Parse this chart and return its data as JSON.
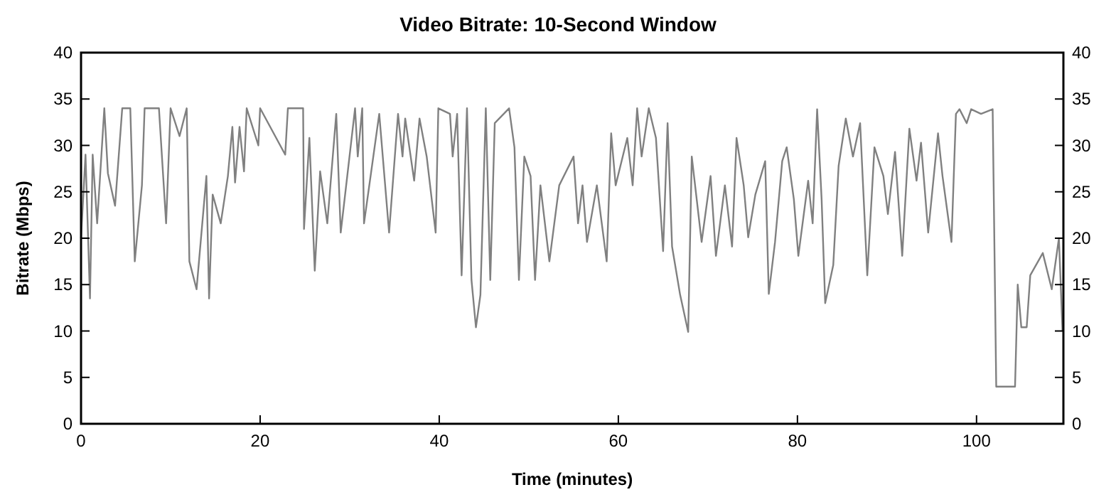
{
  "chart_data": {
    "type": "line",
    "title": "Video Bitrate: 10-Second Window",
    "xlabel": "Time (minutes)",
    "ylabel": "Bitrate (Mbps)",
    "xlim": [
      0,
      109.7
    ],
    "xticks": [
      0,
      20,
      40,
      60,
      80,
      100
    ],
    "ylim": [
      0,
      40
    ],
    "yticks": [
      0,
      5,
      10,
      15,
      20,
      25,
      30,
      35,
      40
    ],
    "y2lim": [
      0,
      40
    ],
    "y2ticks": [
      0,
      5,
      10,
      15,
      20,
      25,
      30,
      35,
      40
    ],
    "grid": false,
    "marker": "none",
    "line_style": "solid",
    "series": [
      {
        "color": "#808080",
        "x": [
          0,
          0.5,
          1,
          1.3,
          1.8,
          2.6,
          3,
          3.8,
          4.6,
          5.5,
          6,
          6.8,
          7.1,
          8.7,
          9.5,
          10,
          11,
          11.8,
          12.1,
          12.9,
          14,
          14.3,
          14.7,
          15.6,
          16.4,
          16.9,
          17.2,
          17.7,
          18.2,
          18.5,
          19.8,
          20,
          22.8,
          23.1,
          24.8,
          24.9,
          25.5,
          26.1,
          26.7,
          27.5,
          28.5,
          29,
          30.6,
          30.9,
          31.4,
          31.6,
          33.3,
          34.4,
          35.4,
          35.9,
          36.2,
          37.2,
          37.8,
          38.6,
          39.6,
          39.9,
          41.2,
          41.5,
          42,
          42.5,
          43.1,
          43.6,
          44.1,
          44.6,
          45.2,
          45.7,
          46.2,
          47.8,
          48.4,
          48.9,
          49.5,
          50.2,
          50.7,
          51.3,
          52.3,
          53.4,
          55,
          55.5,
          56,
          56.5,
          57.6,
          58.7,
          59.2,
          59.7,
          61,
          61.6,
          62.1,
          62.6,
          63.4,
          64.2,
          65,
          65.5,
          66,
          66.9,
          67.8,
          68.2,
          69.3,
          70.3,
          70.9,
          71.9,
          72.7,
          73.2,
          74,
          74.5,
          75.3,
          76.4,
          76.8,
          77.5,
          78.3,
          78.8,
          79.6,
          80.1,
          81.2,
          81.7,
          82.2,
          82.7,
          83.1,
          84,
          84.6,
          85.4,
          86.2,
          87,
          87.8,
          88.6,
          89.6,
          90.1,
          90.9,
          91.7,
          92.5,
          93.3,
          93.8,
          94.6,
          95.7,
          96.2,
          97.2,
          97.7,
          98.1,
          98.9,
          99.4,
          100.5,
          101.8,
          102.2,
          104.3,
          104.6,
          105,
          105.6,
          106,
          107.4,
          108.4,
          109.2,
          109.6
        ],
        "values": [
          20,
          29,
          13.5,
          29,
          21.6,
          34,
          27,
          23.5,
          34,
          34,
          17.5,
          25.7,
          34,
          34,
          21.6,
          34,
          31,
          34,
          17.5,
          14.5,
          26.7,
          13.5,
          24.7,
          21.6,
          26.7,
          32,
          26,
          32,
          27.2,
          34,
          30,
          34,
          29,
          34,
          34,
          21,
          30.8,
          16.5,
          27.2,
          21.6,
          33.4,
          20.6,
          34,
          28.8,
          34,
          21.6,
          33.4,
          20.6,
          33.4,
          28.8,
          32.9,
          26.2,
          32.9,
          28.8,
          20.6,
          34,
          33.4,
          28.8,
          33.4,
          16,
          34,
          15.5,
          10.4,
          13.9,
          34,
          15.5,
          32.4,
          34,
          29.8,
          15.5,
          28.8,
          26.7,
          15.5,
          25.7,
          17.5,
          25.7,
          28.8,
          21.6,
          25.7,
          19.6,
          25.7,
          17.5,
          31.3,
          25.7,
          30.8,
          25.7,
          34,
          28.8,
          34,
          30.8,
          18.6,
          32.4,
          19.1,
          13.9,
          9.9,
          28.8,
          19.6,
          26.7,
          18.1,
          25.7,
          19.1,
          30.8,
          25.7,
          20.1,
          24.7,
          28.3,
          14,
          19.6,
          28.3,
          29.8,
          24.2,
          18.1,
          26.2,
          21.6,
          33.9,
          24.2,
          13,
          17.1,
          27.8,
          32.9,
          28.8,
          32.4,
          16,
          29.8,
          26.7,
          22.6,
          29.3,
          18.1,
          31.8,
          26.2,
          30.3,
          20.6,
          31.3,
          26.7,
          19.6,
          33.4,
          33.9,
          32.4,
          33.9,
          33.4,
          33.9,
          4,
          4,
          15,
          10.4,
          10.4,
          16,
          18.4,
          14.5,
          20,
          10
        ]
      }
    ]
  }
}
